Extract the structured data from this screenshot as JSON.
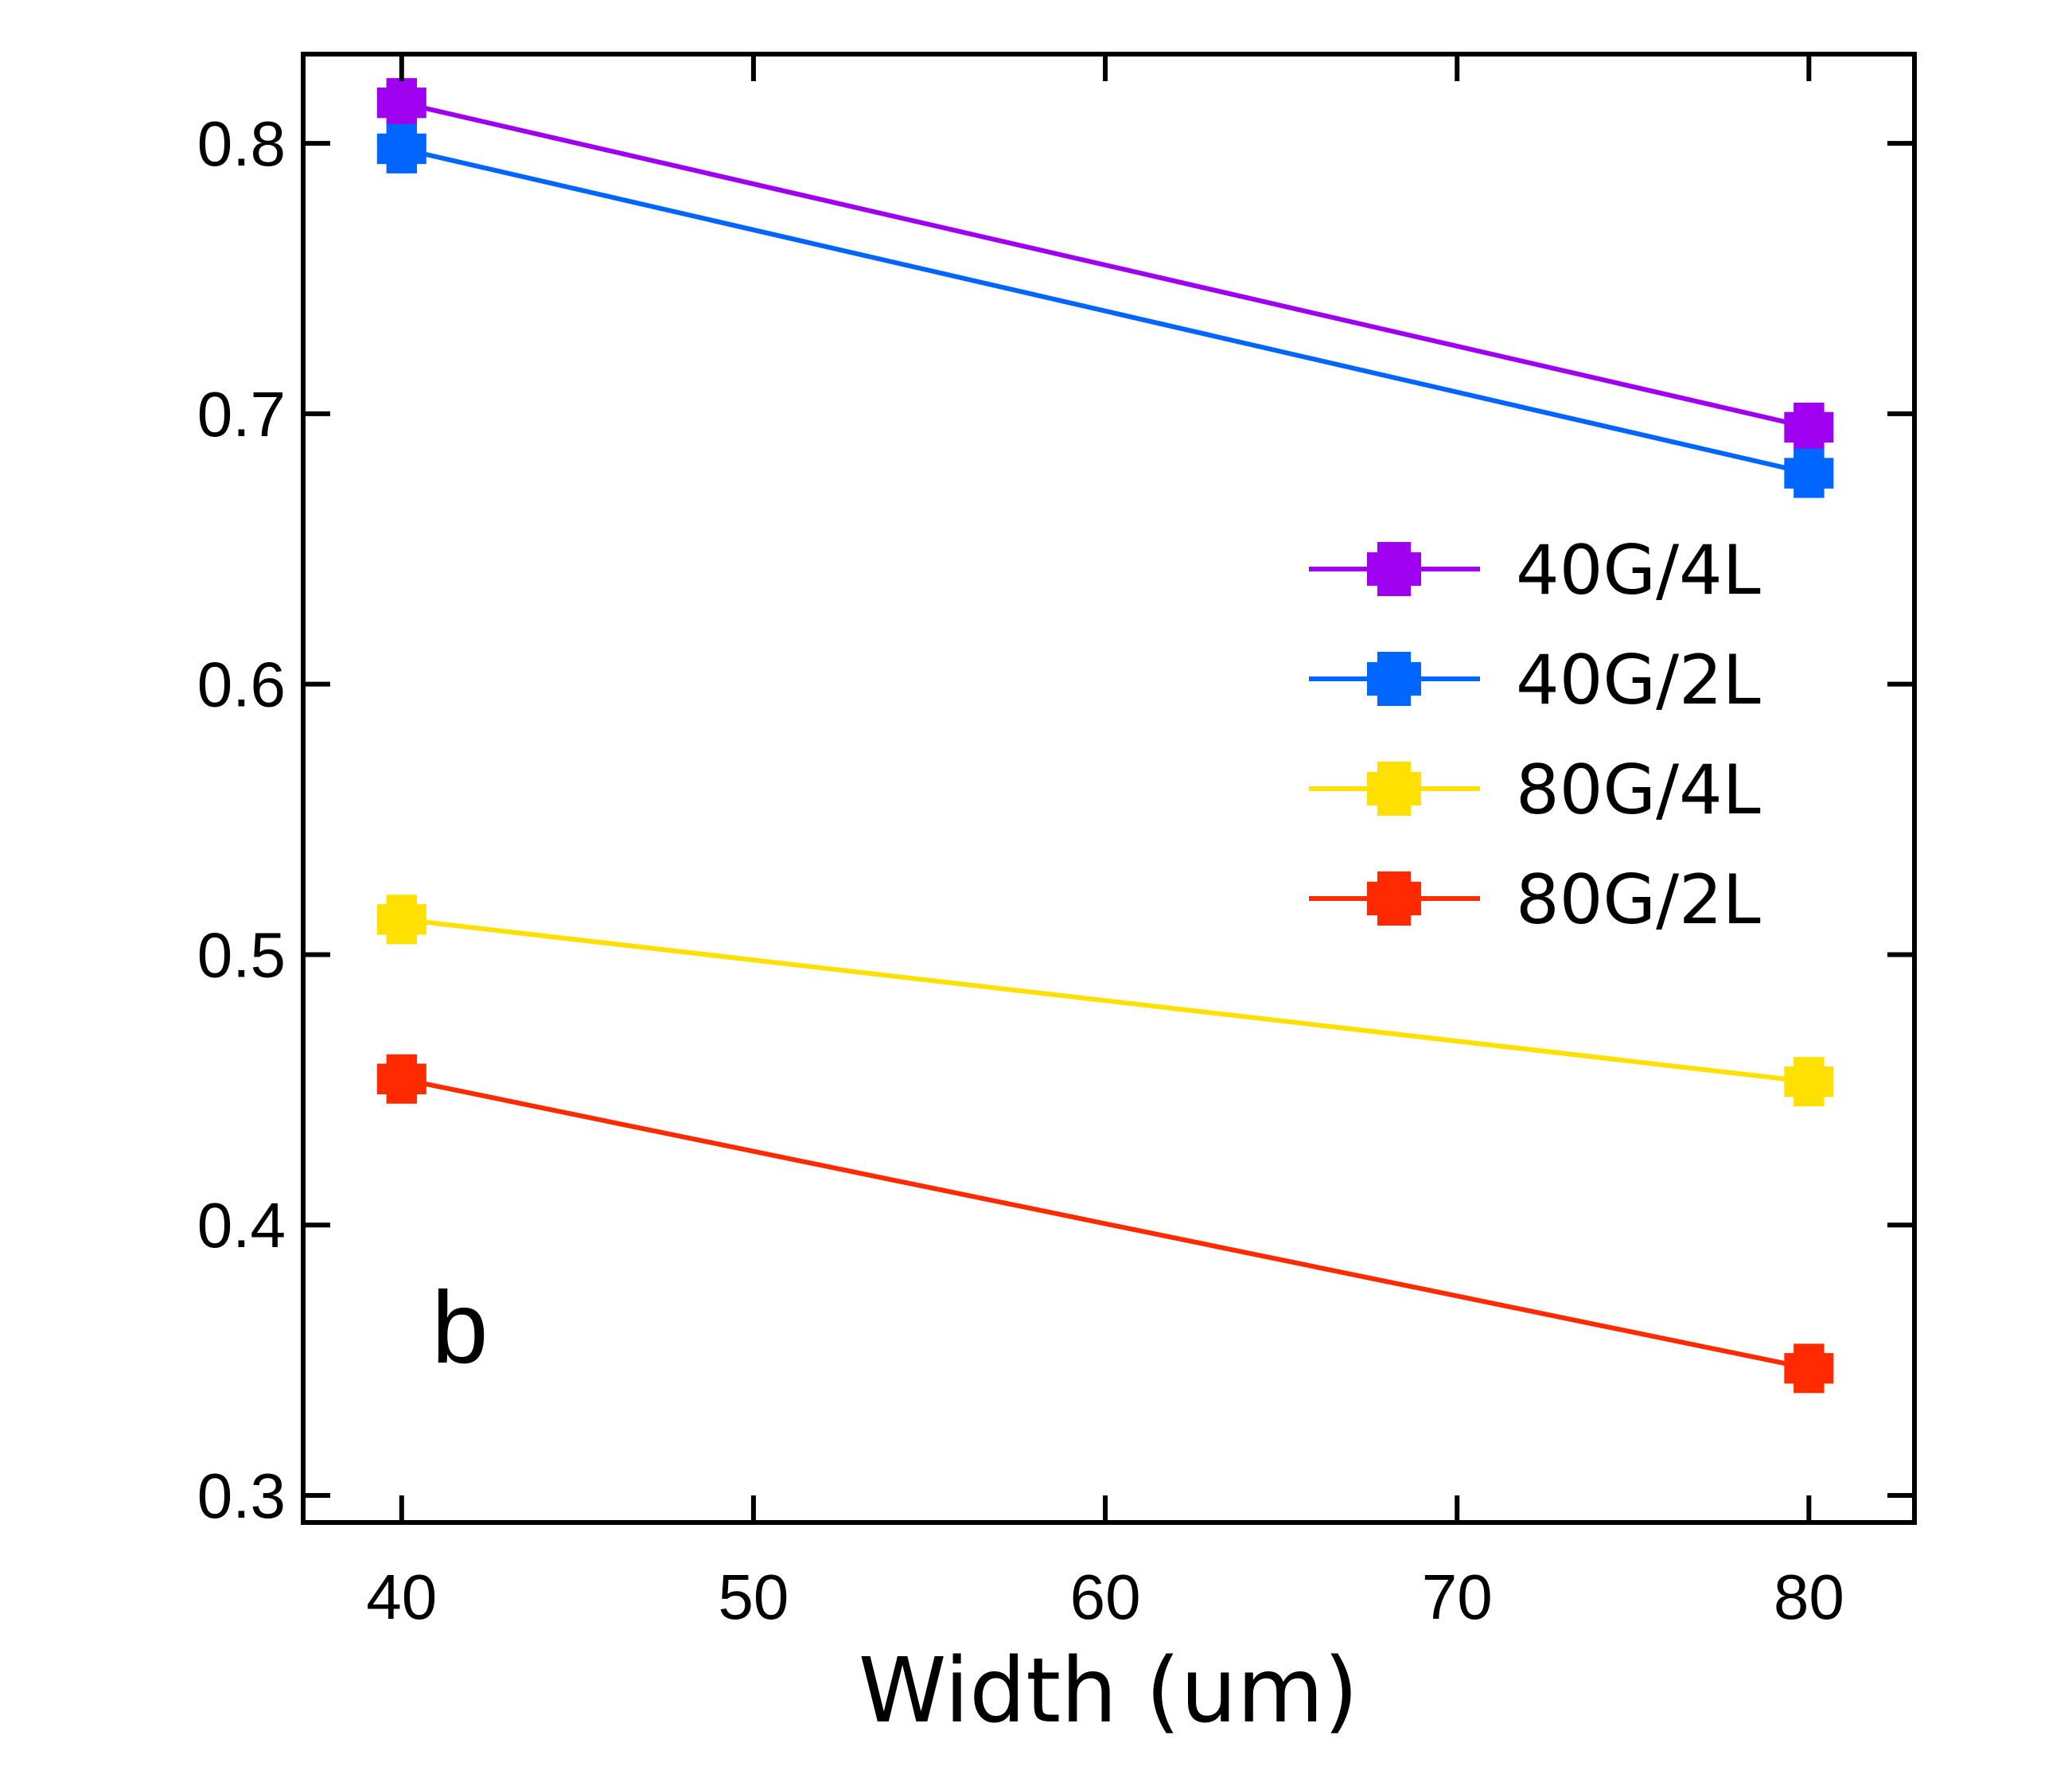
{
  "chart_data": {
    "type": "line",
    "title": "",
    "xlabel": "Width (um)",
    "ylabel": "",
    "panel_label": "b",
    "xlim": [
      37.2,
      83
    ],
    "ylim": [
      0.29,
      0.833
    ],
    "xticks": [
      40,
      50,
      60,
      70,
      80
    ],
    "yticks": [
      0.3,
      0.4,
      0.5,
      0.6,
      0.7,
      0.8
    ],
    "xtick_labels": [
      "40",
      "50",
      "60",
      "70",
      "80"
    ],
    "ytick_labels": [
      "0.3",
      "0.4",
      "0.5",
      "0.6",
      "0.7",
      "0.8"
    ],
    "legend_position": "right",
    "grid": false,
    "x": [
      40,
      80
    ],
    "series": [
      {
        "name": "40G/4L",
        "values": [
          0.815,
          0.695
        ],
        "color": "#a000f0"
      },
      {
        "name": "40G/2L",
        "values": [
          0.798,
          0.678
        ],
        "color": "#0066ff"
      },
      {
        "name": "80G/4L",
        "values": [
          0.513,
          0.453
        ],
        "color": "#ffe000"
      },
      {
        "name": "80G/2L",
        "values": [
          0.454,
          0.347
        ],
        "color": "#ff2a00"
      }
    ]
  }
}
